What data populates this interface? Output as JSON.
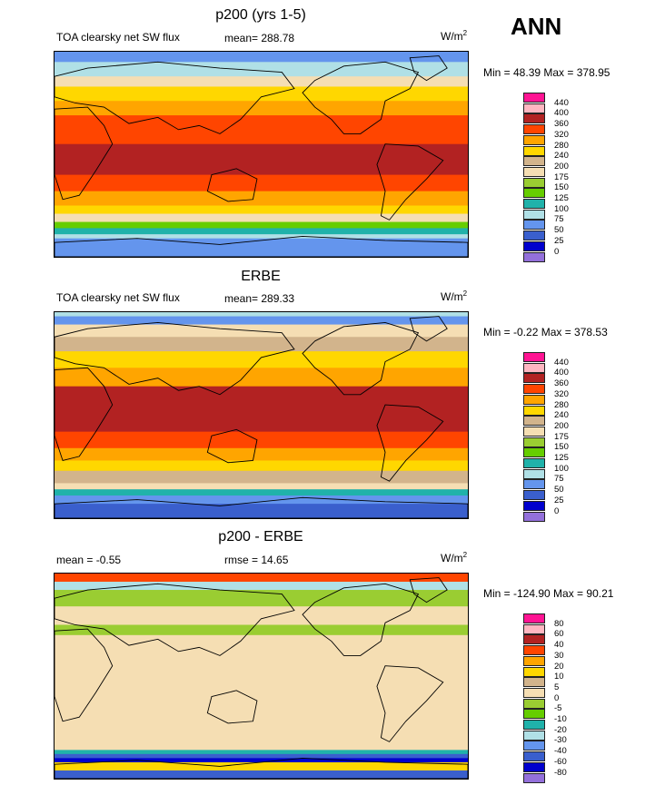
{
  "season": "ANN",
  "colors": {
    "abs": [
      "#9370DB",
      "#0000CD",
      "#3A5FCD",
      "#6495ED",
      "#B0E0E6",
      "#20B2AA",
      "#66CD00",
      "#9ACD32",
      "#F5DEB3",
      "#D2B48C",
      "#FFD700",
      "#FFA500",
      "#FF4500",
      "#B22222",
      "#FFB6C1",
      "#FF1493"
    ],
    "diff": [
      "#9370DB",
      "#0000CD",
      "#3A5FCD",
      "#6495ED",
      "#B0E0E6",
      "#20B2AA",
      "#66CD00",
      "#9ACD32",
      "#F5DEB3",
      "#D2B48C",
      "#FFD700",
      "#FFA500",
      "#FF4500",
      "#B22222",
      "#FFB6C1",
      "#FF1493"
    ]
  },
  "panels": [
    {
      "title": "p200 (yrs 1-5)",
      "left": "TOA clearsky net SW flux",
      "mid": "mean= 288.78",
      "units_base": "W/m",
      "units_exp": "2",
      "minmax": "Min =  48.39 Max = 378.95",
      "levels": [
        "440",
        "400",
        "360",
        "320",
        "280",
        "240",
        "200",
        "175",
        "150",
        "125",
        "100",
        "75",
        "50",
        "25",
        "0"
      ]
    },
    {
      "title": "ERBE",
      "left": "TOA clearsky net SW flux",
      "mid": "mean= 289.33",
      "units_base": "W/m",
      "units_exp": "2",
      "minmax": "Min =  -0.22 Max = 378.53",
      "levels": [
        "440",
        "400",
        "360",
        "320",
        "280",
        "240",
        "200",
        "175",
        "150",
        "125",
        "100",
        "75",
        "50",
        "25",
        "0"
      ]
    },
    {
      "title": "p200 - ERBE",
      "left": "mean =  -0.55",
      "mid": "rmse =  14.65",
      "units_base": "W/m",
      "units_exp": "2",
      "minmax": "Min = -124.90 Max =  90.21",
      "levels": [
        "80",
        "60",
        "40",
        "30",
        "20",
        "10",
        "5",
        "0",
        "-5",
        "-10",
        "-20",
        "-30",
        "-40",
        "-60",
        "-80"
      ]
    }
  ]
}
